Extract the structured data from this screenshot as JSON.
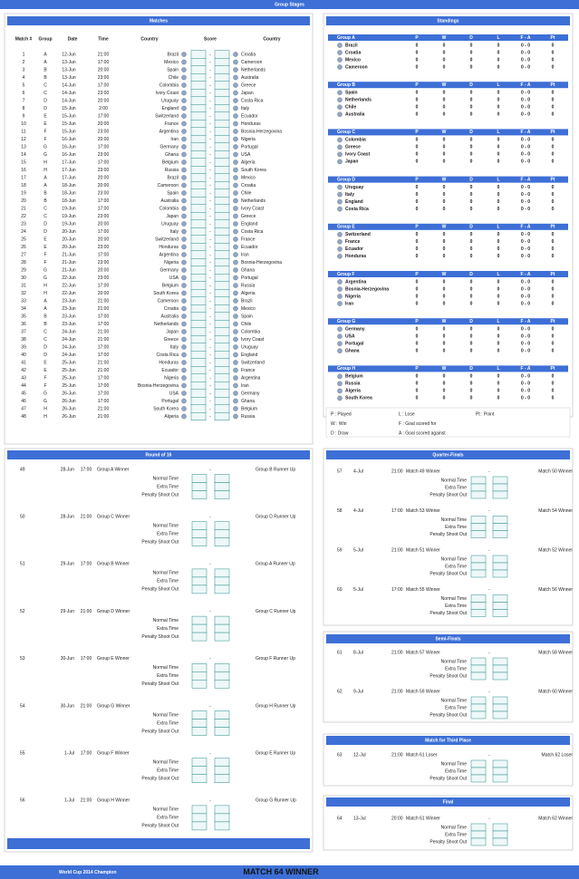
{
  "header": {
    "title": "Group Stages"
  },
  "matches": {
    "title": "Matches",
    "columns": [
      "Match #",
      "Group",
      "Date",
      "Time",
      "Country",
      "Score",
      "Country"
    ],
    "score_sep": "-",
    "rows": [
      [
        1,
        "A",
        "12-Jun",
        "21:00",
        "Brazil",
        "Croatia"
      ],
      [
        2,
        "A",
        "13-Jun",
        "17:00",
        "Mexico",
        "Cameroon"
      ],
      [
        3,
        "B",
        "13-Jun",
        "20:00",
        "Spain",
        "Netherlands"
      ],
      [
        4,
        "B",
        "13-Jun",
        "23:00",
        "Chile",
        "Australia"
      ],
      [
        5,
        "C",
        "14-Jun",
        "17:00",
        "Colombia",
        "Greece"
      ],
      [
        6,
        "C",
        "14-Jun",
        "23:00",
        "Ivory Coast",
        "Japan"
      ],
      [
        7,
        "D",
        "14-Jun",
        "20:00",
        "Uruguay",
        "Costa Rica"
      ],
      [
        8,
        "D",
        "15-Jun",
        "2:00",
        "England",
        "Italy"
      ],
      [
        9,
        "E",
        "15-Jun",
        "17:00",
        "Switzerland",
        "Ecuador"
      ],
      [
        10,
        "E",
        "15-Jun",
        "20:00",
        "France",
        "Honduras"
      ],
      [
        11,
        "F",
        "15-Jun",
        "23:00",
        "Argentina",
        "Bosnia-Herzegovina"
      ],
      [
        12,
        "F",
        "16-Jun",
        "20:00",
        "Iran",
        "Nigeria"
      ],
      [
        13,
        "G",
        "16-Jun",
        "17:00",
        "Germany",
        "Portugal"
      ],
      [
        14,
        "G",
        "16-Jun",
        "23:00",
        "Ghana",
        "USA"
      ],
      [
        15,
        "H",
        "17-Jun",
        "17:00",
        "Belgium",
        "Algeria"
      ],
      [
        16,
        "H",
        "17-Jun",
        "23:00",
        "Russia",
        "South Korea"
      ],
      [
        17,
        "A",
        "17-Jun",
        "20:00",
        "Brazil",
        "Mexico"
      ],
      [
        18,
        "A",
        "18-Jun",
        "20:00",
        "Cameroon",
        "Croatia"
      ],
      [
        19,
        "B",
        "18-Jun",
        "23:00",
        "Spain",
        "Chile"
      ],
      [
        20,
        "B",
        "18-Jun",
        "17:00",
        "Australia",
        "Netherlands"
      ],
      [
        21,
        "C",
        "19-Jun",
        "17:00",
        "Colombia",
        "Ivory Coast"
      ],
      [
        22,
        "C",
        "19-Jun",
        "23:00",
        "Japan",
        "Greece"
      ],
      [
        23,
        "D",
        "19-Jun",
        "20:00",
        "Uruguay",
        "England"
      ],
      [
        24,
        "D",
        "20-Jun",
        "17:00",
        "Italy",
        "Costa Rica"
      ],
      [
        25,
        "E",
        "20-Jun",
        "20:00",
        "Switzerland",
        "France"
      ],
      [
        26,
        "E",
        "20-Jun",
        "23:00",
        "Honduras",
        "Ecuador"
      ],
      [
        27,
        "F",
        "21-Jun",
        "17:00",
        "Argentina",
        "Iran"
      ],
      [
        28,
        "F",
        "21-Jun",
        "23:00",
        "Nigeria",
        "Bosnia-Herzegovina"
      ],
      [
        29,
        "G",
        "21-Jun",
        "20:00",
        "Germany",
        "Ghana"
      ],
      [
        30,
        "G",
        "22-Jun",
        "23:00",
        "USA",
        "Portugal"
      ],
      [
        31,
        "H",
        "22-Jun",
        "17:00",
        "Belgium",
        "Russia"
      ],
      [
        32,
        "H",
        "22-Jun",
        "20:00",
        "South Korea",
        "Algeria"
      ],
      [
        33,
        "A",
        "23-Jun",
        "21:00",
        "Cameroon",
        "Brazil"
      ],
      [
        34,
        "A",
        "23-Jun",
        "21:00",
        "Croatia",
        "Mexico"
      ],
      [
        35,
        "B",
        "23-Jun",
        "17:00",
        "Australia",
        "Spain"
      ],
      [
        36,
        "B",
        "23-Jun",
        "17:00",
        "Netherlands",
        "Chile"
      ],
      [
        37,
        "C",
        "24-Jun",
        "21:00",
        "Japan",
        "Colombia"
      ],
      [
        38,
        "C",
        "24-Jun",
        "21:00",
        "Greece",
        "Ivory Coast"
      ],
      [
        39,
        "D",
        "24-Jun",
        "17:00",
        "Italy",
        "Uruguay"
      ],
      [
        40,
        "D",
        "24-Jun",
        "17:00",
        "Costa Rica",
        "England"
      ],
      [
        41,
        "E",
        "25-Jun",
        "21:00",
        "Honduras",
        "Switzerland"
      ],
      [
        42,
        "E",
        "25-Jun",
        "21:00",
        "Ecuador",
        "France"
      ],
      [
        43,
        "F",
        "25-Jun",
        "17:00",
        "Nigeria",
        "Argentina"
      ],
      [
        44,
        "F",
        "25-Jun",
        "17:00",
        "Bosnia-Herzegovina",
        "Iran"
      ],
      [
        45,
        "G",
        "26-Jun",
        "17:00",
        "USA",
        "Germany"
      ],
      [
        46,
        "G",
        "26-Jun",
        "17:00",
        "Portugal",
        "Ghana"
      ],
      [
        47,
        "H",
        "26-Jun",
        "21:00",
        "South Korea",
        "Belgium"
      ],
      [
        48,
        "H",
        "26-Jun",
        "21:00",
        "Algeria",
        "Russia"
      ]
    ]
  },
  "standings": {
    "title": "Standings",
    "columns": [
      "P",
      "W",
      "D",
      "L",
      "F - A",
      "Pt"
    ],
    "groups": [
      {
        "name": "Group A",
        "teams": [
          {
            "name": "Brazil",
            "stats": [
              0,
              0,
              0,
              0,
              "0 - 0",
              0
            ]
          },
          {
            "name": "Croatia",
            "stats": [
              0,
              0,
              0,
              0,
              "0 - 0",
              0
            ]
          },
          {
            "name": "Mexico",
            "stats": [
              0,
              0,
              0,
              0,
              "0 - 0",
              0
            ]
          },
          {
            "name": "Cameroon",
            "stats": [
              0,
              0,
              0,
              0,
              "0 - 0",
              0
            ]
          }
        ]
      },
      {
        "name": "Group B",
        "teams": [
          {
            "name": "Spain",
            "stats": [
              0,
              0,
              0,
              0,
              "0 - 0",
              0
            ]
          },
          {
            "name": "Netherlands",
            "stats": [
              0,
              0,
              0,
              0,
              "0 - 0",
              0
            ]
          },
          {
            "name": "Chile",
            "stats": [
              0,
              0,
              0,
              0,
              "0 - 0",
              0
            ]
          },
          {
            "name": "Australia",
            "stats": [
              0,
              0,
              0,
              0,
              "0 - 0",
              0
            ]
          }
        ]
      },
      {
        "name": "Group C",
        "teams": [
          {
            "name": "Colombia",
            "stats": [
              0,
              0,
              0,
              0,
              "0 - 0",
              0
            ]
          },
          {
            "name": "Greece",
            "stats": [
              0,
              0,
              0,
              0,
              "0 - 0",
              0
            ]
          },
          {
            "name": "Ivory Coast",
            "stats": [
              0,
              0,
              0,
              0,
              "0 - 0",
              0
            ]
          },
          {
            "name": "Japan",
            "stats": [
              0,
              0,
              0,
              0,
              "0 - 0",
              0
            ]
          }
        ]
      },
      {
        "name": "Group D",
        "teams": [
          {
            "name": "Uruguay",
            "stats": [
              0,
              0,
              0,
              0,
              "0 - 0",
              0
            ]
          },
          {
            "name": "Italy",
            "stats": [
              0,
              0,
              0,
              0,
              "0 - 0",
              0
            ]
          },
          {
            "name": "England",
            "stats": [
              0,
              0,
              0,
              0,
              "0 - 0",
              0
            ]
          },
          {
            "name": "Costa Rica",
            "stats": [
              0,
              0,
              0,
              0,
              "0 - 0",
              0
            ]
          }
        ]
      },
      {
        "name": "Group E",
        "teams": [
          {
            "name": "Switzerland",
            "stats": [
              0,
              0,
              0,
              0,
              "0 - 0",
              0
            ]
          },
          {
            "name": "France",
            "stats": [
              0,
              0,
              0,
              0,
              "0 - 0",
              0
            ]
          },
          {
            "name": "Ecuador",
            "stats": [
              0,
              0,
              0,
              0,
              "0 - 0",
              0
            ]
          },
          {
            "name": "Honduras",
            "stats": [
              0,
              0,
              0,
              0,
              "0 - 0",
              0
            ]
          }
        ]
      },
      {
        "name": "Group F",
        "teams": [
          {
            "name": "Argentina",
            "stats": [
              0,
              0,
              0,
              0,
              "0 - 0",
              0
            ]
          },
          {
            "name": "Bosnia-Herzegovina",
            "stats": [
              0,
              0,
              0,
              0,
              "0 - 0",
              0
            ]
          },
          {
            "name": "Nigeria",
            "stats": [
              0,
              0,
              0,
              0,
              "0 - 0",
              0
            ]
          },
          {
            "name": "Iran",
            "stats": [
              0,
              0,
              0,
              0,
              "0 - 0",
              0
            ]
          }
        ]
      },
      {
        "name": "Group G",
        "teams": [
          {
            "name": "Germany",
            "stats": [
              0,
              0,
              0,
              0,
              "0 - 0",
              0
            ]
          },
          {
            "name": "USA",
            "stats": [
              0,
              0,
              0,
              0,
              "0 - 0",
              0
            ]
          },
          {
            "name": "Portugal",
            "stats": [
              0,
              0,
              0,
              0,
              "0 - 0",
              0
            ]
          },
          {
            "name": "Ghana",
            "stats": [
              0,
              0,
              0,
              0,
              "0 - 0",
              0
            ]
          }
        ]
      },
      {
        "name": "Group H",
        "teams": [
          {
            "name": "Belgium",
            "stats": [
              0,
              0,
              0,
              0,
              "0 - 0",
              0
            ]
          },
          {
            "name": "Russia",
            "stats": [
              0,
              0,
              0,
              0,
              "0 - 0",
              0
            ]
          },
          {
            "name": "Algeria",
            "stats": [
              0,
              0,
              0,
              0,
              "0 - 0",
              0
            ]
          },
          {
            "name": "South Korea",
            "stats": [
              0,
              0,
              0,
              0,
              "0 - 0",
              0
            ]
          }
        ]
      }
    ]
  },
  "legend": [
    [
      "P : Played",
      "L : Lose",
      "Pt : Point"
    ],
    [
      "W : Win",
      "F : Goal scored for"
    ],
    [
      "D : Draw",
      "A : Goal scored against"
    ]
  ],
  "knockout": {
    "score_labels": [
      "Normal Time",
      "Extra Time",
      "Penalty Shoot Out"
    ],
    "score_sep": "-",
    "rounds": [
      {
        "title": "Round of 16",
        "matches": [
          {
            "no": 49,
            "date": "28-Jun",
            "time": "17:00",
            "home": "Group A Winner",
            "away": "Group B Runner Up"
          },
          {
            "no": 50,
            "date": "28-Jun",
            "time": "21:00",
            "home": "Group C Winner",
            "away": "Group D Runner Up"
          },
          {
            "no": 51,
            "date": "29-Jun",
            "time": "17:00",
            "home": "Group B Winner",
            "away": "Group A Runner Up"
          },
          {
            "no": 52,
            "date": "29-Jun",
            "time": "21:00",
            "home": "Group D Winner",
            "away": "Group C Runner Up"
          },
          {
            "no": 53,
            "date": "30-Jun",
            "time": "17:00",
            "home": "Group E Winner",
            "away": "Group F Runner Up"
          },
          {
            "no": 54,
            "date": "30-Jun",
            "time": "21:00",
            "home": "Group G Winner",
            "away": "Group H Runner Up"
          },
          {
            "no": 55,
            "date": "1-Jul",
            "time": "17:00",
            "home": "Group F Winner",
            "away": "Group E Runner Up"
          },
          {
            "no": 56,
            "date": "1-Jul",
            "time": "21:00",
            "home": "Group H Winner",
            "away": "Group G Runner Up"
          }
        ]
      },
      {
        "title": "Quarter-Finals",
        "matches": [
          {
            "no": 57,
            "date": "4-Jul",
            "time": "21:00",
            "home": "Match 49 Winner",
            "away": "Match 50 Winner"
          },
          {
            "no": 58,
            "date": "4-Jul",
            "time": "17:00",
            "home": "Match 53 Winner",
            "away": "Match 54 Winner"
          },
          {
            "no": 59,
            "date": "5-Jul",
            "time": "21:00",
            "home": "Match 51 Winner",
            "away": "Match 52 Winner"
          },
          {
            "no": 60,
            "date": "5-Jul",
            "time": "17:00",
            "home": "Match 55 Winner",
            "away": "Match 56 Winner"
          }
        ]
      },
      {
        "title": "Semi-Finals",
        "matches": [
          {
            "no": 61,
            "date": "8-Jul",
            "time": "21:00",
            "home": "Match 57 Winner",
            "away": "Match 58 Winner"
          },
          {
            "no": 62,
            "date": "9-Jul",
            "time": "21:00",
            "home": "Match 59 Winner",
            "away": "Match 60 Winner"
          }
        ]
      },
      {
        "title": "Match for Third Place",
        "matches": [
          {
            "no": 63,
            "date": "12-Jul",
            "time": "21:00",
            "home": "Match 61 Loser",
            "away": "Match 62 Loser"
          }
        ]
      },
      {
        "title": "Final",
        "matches": [
          {
            "no": 64,
            "date": "13-Jul",
            "time": "20:00",
            "home": "Match 61 Winner",
            "away": "Match 62 Winner"
          }
        ]
      }
    ]
  },
  "footer": {
    "label": "World Cup 2014 Champion",
    "winner": "MATCH 64 WINNER"
  }
}
